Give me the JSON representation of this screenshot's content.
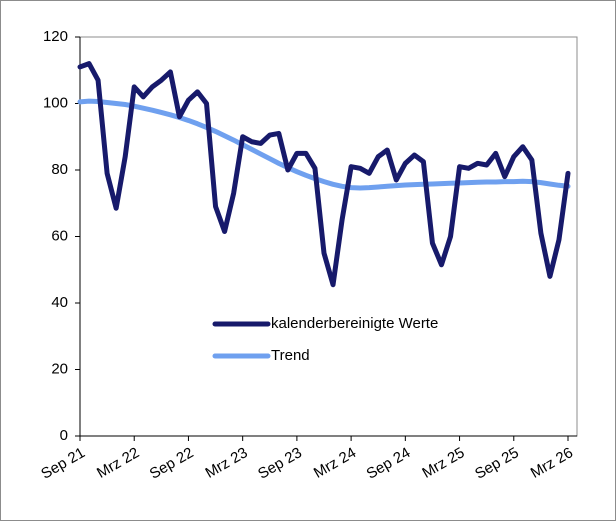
{
  "chart_data": {
    "type": "line",
    "categories": [
      "Sep 21",
      null,
      null,
      null,
      null,
      null,
      "Mrz 22",
      null,
      null,
      null,
      null,
      null,
      "Sep 22",
      null,
      null,
      null,
      null,
      null,
      "Mrz 23",
      null,
      null,
      null,
      null,
      null,
      "Sep 23",
      null,
      null,
      null,
      null,
      null,
      "Mrz 24",
      null,
      null,
      null,
      null,
      null,
      "Sep 24",
      null,
      null,
      null,
      null,
      null,
      "Mrz 25",
      null,
      null,
      null,
      null,
      null,
      "Sep 25",
      null,
      null,
      null,
      null,
      null,
      "Mrz 26"
    ],
    "series": [
      {
        "name": "kalenderbereinigte Werte",
        "color": "#171a6b",
        "values": [
          111,
          112,
          107,
          79,
          68.5,
          84,
          105,
          102,
          105,
          107,
          109.5,
          96,
          101,
          103.5,
          100,
          69,
          61.5,
          73,
          90,
          88.5,
          88,
          90.5,
          91,
          80,
          85,
          85,
          80.5,
          55,
          45.5,
          65,
          81,
          80.5,
          79,
          84,
          86,
          77,
          82,
          84.5,
          82.5,
          58,
          51.5,
          60,
          81,
          80.5,
          82,
          81.5,
          85,
          78,
          84,
          87,
          83,
          61,
          48,
          59,
          79
        ]
      },
      {
        "name": "Trend",
        "color": "#6fa0ef",
        "values": [
          100.5,
          100.7,
          100.6,
          100.3,
          100,
          99.7,
          99.2,
          98.6,
          98,
          97.3,
          96.6,
          95.8,
          94.9,
          93.9,
          92.8,
          91.6,
          90.3,
          89,
          87.6,
          86.2,
          84.8,
          83.4,
          82,
          80.7,
          79.5,
          78.4,
          77.4,
          76.5,
          75.7,
          75.1,
          74.7,
          74.6,
          74.7,
          74.9,
          75.1,
          75.3,
          75.5,
          75.6,
          75.7,
          75.8,
          75.9,
          76,
          76.1,
          76.2,
          76.3,
          76.4,
          76.4,
          76.5,
          76.5,
          76.6,
          76.5,
          76.2,
          75.8,
          75.4,
          75.1
        ]
      }
    ],
    "ylim": [
      0,
      120
    ],
    "yticks": [
      0,
      20,
      40,
      60,
      80,
      100,
      120
    ]
  }
}
